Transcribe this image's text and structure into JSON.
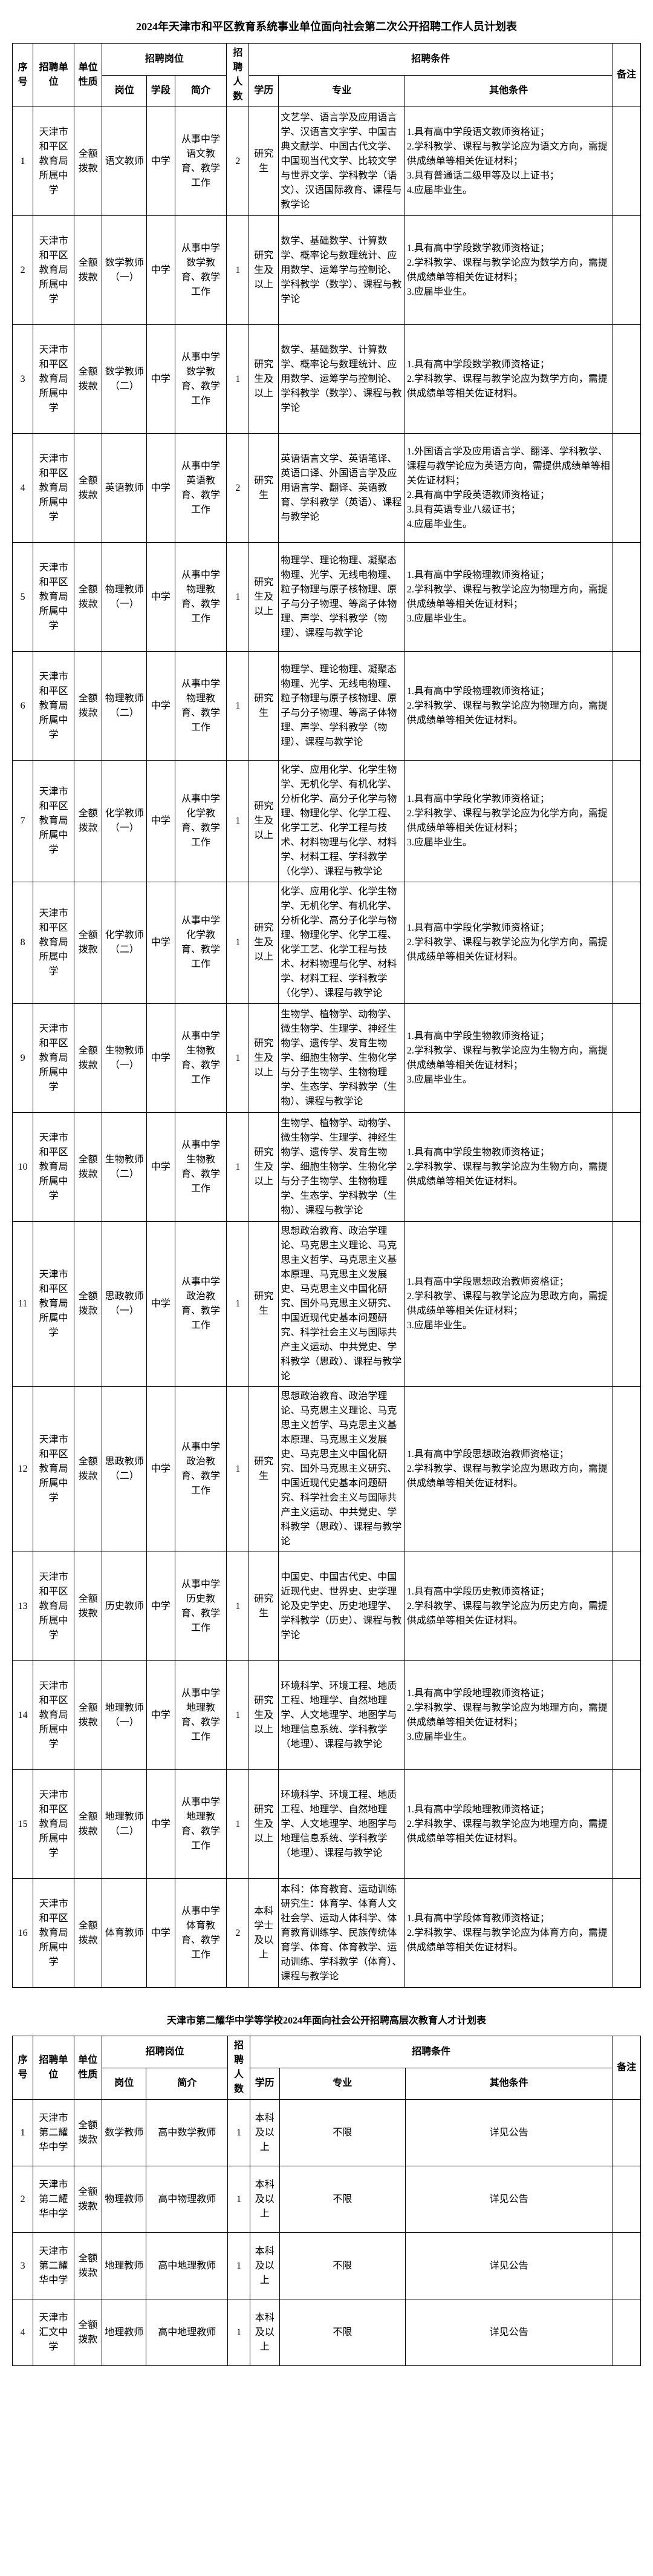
{
  "table1": {
    "title": "2024年天津市和平区教育系统事业单位面向社会第二次公开招聘工作人员计划表",
    "title_fontsize": 18,
    "headers": {
      "seq": "序号",
      "unit": "招聘单位",
      "nature": "单位性质",
      "post_group": "招聘岗位",
      "post": "岗位",
      "level": "学段",
      "intro": "简介",
      "num": "招聘人数",
      "cond_group": "招聘条件",
      "edu": "学历",
      "major": "专业",
      "other": "其他条件",
      "remark": "备注"
    },
    "rows": [
      {
        "seq": "1",
        "unit": "天津市和平区教育局所属中学",
        "nature": "全额拨款",
        "post": "语文教师",
        "level": "中学",
        "intro": "从事中学语文教育、教学工作",
        "num": "2",
        "edu": "研究生",
        "major": "文艺学、语言学及应用语言学、汉语言文字学、中国古典文献学、中国古代文学、中国现当代文学、比较文学与世界文学、学科教学（语文）、汉语国际教育、课程与教学论",
        "other": "1.具有高中学段语文教师资格证；\n2.学科教学、课程与教学论应为语文方向，需提供成绩单等相关佐证材料；\n3.具有普通话二级甲等及以上证书；\n4.应届毕业生。"
      },
      {
        "seq": "2",
        "unit": "天津市和平区教育局所属中学",
        "nature": "全额拨款",
        "post": "数学教师（一）",
        "level": "中学",
        "intro": "从事中学数学教育、教学工作",
        "num": "1",
        "edu": "研究生及以上",
        "major": "数学、基础数学、计算数学、概率论与数理统计、应用数学、运筹学与控制论、学科教学（数学）、课程与教学论",
        "other": "1.具有高中学段数学教师资格证；\n2.学科教学、课程与教学论应为数学方向，需提供成绩单等相关佐证材料；\n3.应届毕业生。"
      },
      {
        "seq": "3",
        "unit": "天津市和平区教育局所属中学",
        "nature": "全额拨款",
        "post": "数学教师（二）",
        "level": "中学",
        "intro": "从事中学数学教育、教学工作",
        "num": "1",
        "edu": "研究生及以上",
        "major": "数学、基础数学、计算数学、概率论与数理统计、应用数学、运筹学与控制论、学科教学（数学）、课程与教学论",
        "other": "1.具有高中学段数学教师资格证；\n2.学科教学、课程与教学论应为数学方向，需提供成绩单等相关佐证材料。"
      },
      {
        "seq": "4",
        "unit": "天津市和平区教育局所属中学",
        "nature": "全额拨款",
        "post": "英语教师",
        "level": "中学",
        "intro": "从事中学英语教育、教学工作",
        "num": "2",
        "edu": "研究生",
        "major": "英语语言文学、英语笔译、英语口译、外国语言学及应用语言学、翻译、英语教育、学科教学（英语）、课程与教学论",
        "other": "1.外国语言学及应用语言学、翻译、学科教学、课程与教学论应为英语方向，需提供成绩单等相关佐证材料；\n2.具有高中学段英语教师资格证；\n3.具有英语专业八级证书；\n4.应届毕业生。"
      },
      {
        "seq": "5",
        "unit": "天津市和平区教育局所属中学",
        "nature": "全额拨款",
        "post": "物理教师（一）",
        "level": "中学",
        "intro": "从事中学物理教育、教学工作",
        "num": "1",
        "edu": "研究生及以上",
        "major": "物理学、理论物理、凝聚态物理、光学、无线电物理、粒子物理与原子核物理、原子与分子物理、等离子体物理、声学、学科教学（物理）、课程与教学论",
        "other": "1.具有高中学段物理教师资格证；\n2.学科教学、课程与教学论应为物理方向，需提供成绩单等相关佐证材料；\n3.应届毕业生。"
      },
      {
        "seq": "6",
        "unit": "天津市和平区教育局所属中学",
        "nature": "全额拨款",
        "post": "物理教师（二）",
        "level": "中学",
        "intro": "从事中学物理教育、教学工作",
        "num": "1",
        "edu": "研究生",
        "major": "物理学、理论物理、凝聚态物理、光学、无线电物理、粒子物理与原子核物理、原子与分子物理、等离子体物理、声学、学科教学（物理）、课程与教学论",
        "other": "1.具有高中学段物理教师资格证；\n2.学科教学、课程与教学论应为物理方向，需提供成绩单等相关佐证材料。"
      },
      {
        "seq": "7",
        "unit": "天津市和平区教育局所属中学",
        "nature": "全额拨款",
        "post": "化学教师（一）",
        "level": "中学",
        "intro": "从事中学化学教育、教学工作",
        "num": "1",
        "edu": "研究生及以上",
        "major": "化学、应用化学、化学生物学、无机化学、有机化学、分析化学、高分子化学与物理、物理化学、化学工程、化学工艺、化学工程与技术、材料物理与化学、材料学、材料工程、学科教学（化学）、课程与教学论",
        "other": "1.具有高中学段化学教师资格证；\n2.学科教学、课程与教学论应为化学方向，需提供成绩单等相关佐证材料；\n3.应届毕业生。"
      },
      {
        "seq": "8",
        "unit": "天津市和平区教育局所属中学",
        "nature": "全额拨款",
        "post": "化学教师（二）",
        "level": "中学",
        "intro": "从事中学化学教育、教学工作",
        "num": "1",
        "edu": "研究生及以上",
        "major": "化学、应用化学、化学生物学、无机化学、有机化学、分析化学、高分子化学与物理、物理化学、化学工程、化学工艺、化学工程与技术、材料物理与化学、材料学、材料工程、学科教学（化学）、课程与教学论",
        "other": "1.具有高中学段化学教师资格证；\n2.学科教学、课程与教学论应为化学方向，需提供成绩单等相关佐证材料。"
      },
      {
        "seq": "9",
        "unit": "天津市和平区教育局所属中学",
        "nature": "全额拨款",
        "post": "生物教师（一）",
        "level": "中学",
        "intro": "从事中学生物教育、教学工作",
        "num": "1",
        "edu": "研究生及以上",
        "major": "生物学、植物学、动物学、微生物学、生理学、神经生物学、遗传学、发育生物学、细胞生物学、生物化学与分子生物学、生物物理学、生态学、学科教学（生物）、课程与教学论",
        "other": "1.具有高中学段生物教师资格证；\n2.学科教学、课程与教学论应为生物方向，需提供成绩单等相关佐证材料；\n3.应届毕业生。"
      },
      {
        "seq": "10",
        "unit": "天津市和平区教育局所属中学",
        "nature": "全额拨款",
        "post": "生物教师（二）",
        "level": "中学",
        "intro": "从事中学生物教育、教学工作",
        "num": "1",
        "edu": "研究生及以上",
        "major": "生物学、植物学、动物学、微生物学、生理学、神经生物学、遗传学、发育生物学、细胞生物学、生物化学与分子生物学、生物物理学、生态学、学科教学（生物）、课程与教学论",
        "other": "1.具有高中学段生物教师资格证；\n2.学科教学、课程与教学论应为生物方向，需提供成绩单等相关佐证材料。"
      },
      {
        "seq": "11",
        "unit": "天津市和平区教育局所属中学",
        "nature": "全额拨款",
        "post": "思政教师（一）",
        "level": "中学",
        "intro": "从事中学政治教育、教学工作",
        "num": "1",
        "edu": "研究生",
        "major": "思想政治教育、政治学理论、马克思主义理论、马克思主义哲学、马克思主义基本原理、马克思主义发展史、马克思主义中国化研究、国外马克思主义研究、中国近现代史基本问题研究、科学社会主义与国际共产主义运动、中共党史、学科教学（思政）、课程与教学论",
        "other": "1.具有高中学段思想政治教师资格证；\n2.学科教学、课程与教学论应为思政方向，需提供成绩单等相关佐证材料；\n3.应届毕业生。"
      },
      {
        "seq": "12",
        "unit": "天津市和平区教育局所属中学",
        "nature": "全额拨款",
        "post": "思政教师（二）",
        "level": "中学",
        "intro": "从事中学政治教育、教学工作",
        "num": "1",
        "edu": "研究生",
        "major": "思想政治教育、政治学理论、马克思主义理论、马克思主义哲学、马克思主义基本原理、马克思主义发展史、马克思主义中国化研究、国外马克思主义研究、中国近现代史基本问题研究、科学社会主义与国际共产主义运动、中共党史、学科教学（思政）、课程与教学论",
        "other": "1.具有高中学段思想政治教师资格证；\n2.学科教学、课程与教学论应为思政方向，需提供成绩单等相关佐证材料。"
      },
      {
        "seq": "13",
        "unit": "天津市和平区教育局所属中学",
        "nature": "全额拨款",
        "post": "历史教师",
        "level": "中学",
        "intro": "从事中学历史教育、教学工作",
        "num": "1",
        "edu": "研究生",
        "major": "中国史、中国古代史、中国近现代史、世界史、史学理论及史学史、历史地理学、学科教学（历史）、课程与教学论",
        "other": "1.具有高中学段历史教师资格证；\n2.学科教学、课程与教学论应为历史方向，需提供成绩单等相关佐证材料。"
      },
      {
        "seq": "14",
        "unit": "天津市和平区教育局所属中学",
        "nature": "全额拨款",
        "post": "地理教师（一）",
        "level": "中学",
        "intro": "从事中学地理教育、教学工作",
        "num": "1",
        "edu": "研究生及以上",
        "major": "环境科学、环境工程、地质工程、地理学、自然地理学、人文地理学、地图学与地理信息系统、学科教学（地理）、课程与教学论",
        "other": "1.具有高中学段地理教师资格证；\n2.学科教学、课程与教学论应为地理方向，需提供成绩单等相关佐证材料；\n3.应届毕业生。"
      },
      {
        "seq": "15",
        "unit": "天津市和平区教育局所属中学",
        "nature": "全额拨款",
        "post": "地理教师（二）",
        "level": "中学",
        "intro": "从事中学地理教育、教学工作",
        "num": "1",
        "edu": "研究生及以上",
        "major": "环境科学、环境工程、地质工程、地理学、自然地理学、人文地理学、地图学与地理信息系统、学科教学（地理）、课程与教学论",
        "other": "1.具有高中学段地理教师资格证；\n2.学科教学、课程与教学论应为地理方向，需提供成绩单等相关佐证材料。"
      },
      {
        "seq": "16",
        "unit": "天津市和平区教育局所属中学",
        "nature": "全额拨款",
        "post": "体育教师",
        "level": "中学",
        "intro": "从事中学体育教育、教学工作",
        "num": "2",
        "edu": "本科学士及以上",
        "major": "本科：体育教育、运动训练\n研究生：体育学、体育人文社会学、运动人体科学、体育教育训练学、民族传统体育学、体育、体育教学、运动训练、学科教学（体育）、课程与教学论",
        "other": "1.具有高中学段体育教师资格证；\n2.学科教学、课程与教学论应为体育方向，需提供成绩单等相关佐证材料。"
      }
    ]
  },
  "table2": {
    "title": "天津市第二耀华中学等学校2024年面向社会公开招聘高层次教育人才计划表",
    "title_fontsize": 16,
    "headers": {
      "seq": "序号",
      "unit": "招聘单位",
      "nature": "单位性质",
      "post_group": "招聘岗位",
      "post": "岗位",
      "intro": "简介",
      "num": "招聘人数",
      "cond_group": "招聘条件",
      "edu": "学历",
      "major": "专业",
      "other": "其他条件",
      "remark": "备注"
    },
    "rows": [
      {
        "seq": "1",
        "unit": "天津市第二耀华中学",
        "nature": "全额拨款",
        "post": "数学教师",
        "intro": "高中数学教师",
        "num": "1",
        "edu": "本科及以上",
        "major": "不限",
        "other": "详见公告"
      },
      {
        "seq": "2",
        "unit": "天津市第二耀华中学",
        "nature": "全额拨款",
        "post": "物理教师",
        "intro": "高中物理教师",
        "num": "1",
        "edu": "本科及以上",
        "major": "不限",
        "other": "详见公告"
      },
      {
        "seq": "3",
        "unit": "天津市第二耀华中学",
        "nature": "全额拨款",
        "post": "地理教师",
        "intro": "高中地理教师",
        "num": "1",
        "edu": "本科及以上",
        "major": "不限",
        "other": "详见公告"
      },
      {
        "seq": "4",
        "unit": "天津市汇文中学",
        "nature": "全额拨款",
        "post": "地理教师",
        "intro": "高中地理教师",
        "num": "1",
        "edu": "本科及以上",
        "major": "不限",
        "other": "详见公告"
      }
    ]
  },
  "styling": {
    "border_color": "#000000",
    "background_color": "#ffffff",
    "font_family": "SimSun",
    "header_fontsize": 13,
    "cell_fontsize": 12
  }
}
